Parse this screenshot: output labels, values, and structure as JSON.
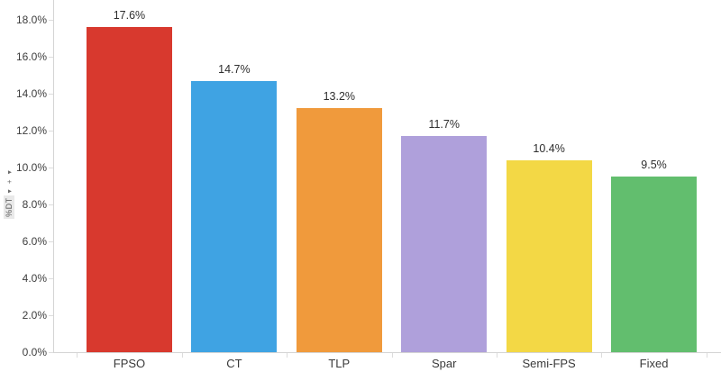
{
  "chart_data": {
    "type": "bar",
    "categories": [
      "FPSO",
      "CT",
      "TLP",
      "Spar",
      "Semi-FPS",
      "Fixed"
    ],
    "values": [
      17.6,
      14.7,
      13.2,
      11.7,
      10.4,
      9.5
    ],
    "value_labels": [
      "17.6%",
      "14.7%",
      "13.2%",
      "11.7%",
      "10.4%",
      "9.5%"
    ],
    "bar_colors": [
      "#d8392e",
      "#3fa3e3",
      "#f09a3c",
      "#afa0db",
      "#f3d845",
      "#62be6e"
    ],
    "title": "",
    "xlabel": "",
    "ylabel": "%DT",
    "y_axis_title_decorations": "▾ + ▾",
    "ylim": [
      0,
      18
    ],
    "ytick_step": 2,
    "ytick_labels": [
      "0.0%",
      "2.0%",
      "4.0%",
      "6.0%",
      "8.0%",
      "10.0%",
      "12.0%",
      "14.0%",
      "16.0%",
      "18.0%"
    ],
    "grid": false,
    "legend": "none",
    "axis_line_color": "#d4d4d4",
    "label_text_color": "#3d3d3d"
  }
}
